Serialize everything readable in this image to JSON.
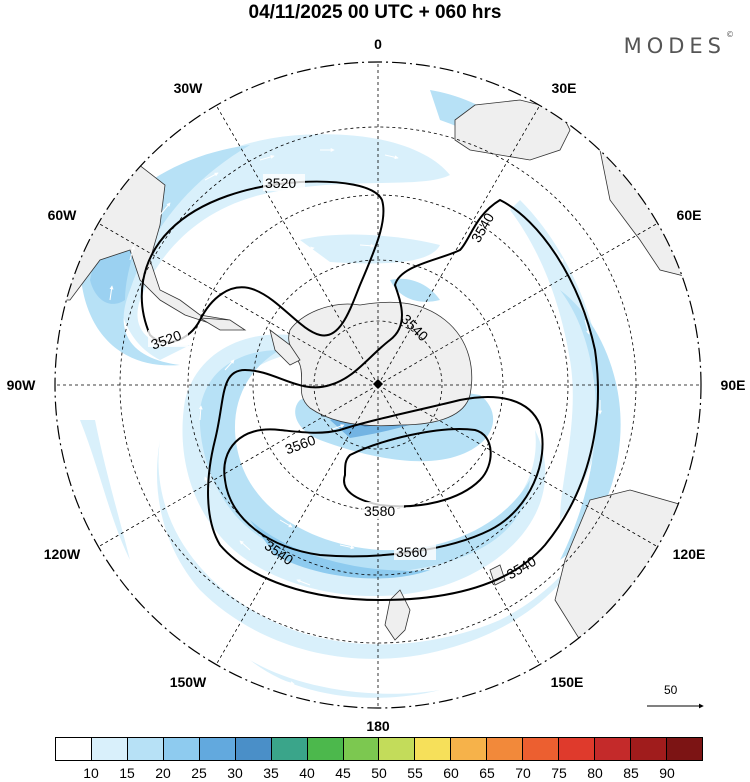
{
  "header": {
    "title": "04/11/2025  00 UTC  + 060 hrs",
    "brand": "MODES",
    "brand_mark": "©"
  },
  "map": {
    "projection": "south-polar-stereographic",
    "longitude_labels": {
      "top": "0",
      "upper_left": "30W",
      "upper_right": "30E",
      "left_upper": "60W",
      "right_upper": "60E",
      "left": "90W",
      "right": "90E",
      "left_lower": "120W",
      "right_lower": "120E",
      "lower_left": "150W",
      "lower_right": "150E",
      "bottom": "180"
    },
    "contour_labels": [
      "3520",
      "3520",
      "3540",
      "3540",
      "3560",
      "3580",
      "3560",
      "3540",
      "3540"
    ],
    "reference_vector": "50"
  },
  "colorbar": {
    "labels": [
      "10",
      "15",
      "20",
      "25",
      "30",
      "35",
      "40",
      "45",
      "50",
      "55",
      "60",
      "65",
      "70",
      "75",
      "80",
      "85",
      "90"
    ],
    "colors": [
      "#ffffff",
      "#d9f0fb",
      "#b7e1f6",
      "#8ecbef",
      "#62a9de",
      "#4a8fc8",
      "#3aa58a",
      "#4cb84c",
      "#7cc850",
      "#c3dc5a",
      "#f6e05a",
      "#f6b24a",
      "#f2893a",
      "#ec5f30",
      "#df3a2c",
      "#c42a2a",
      "#a01c1c",
      "#7c1414"
    ]
  }
}
